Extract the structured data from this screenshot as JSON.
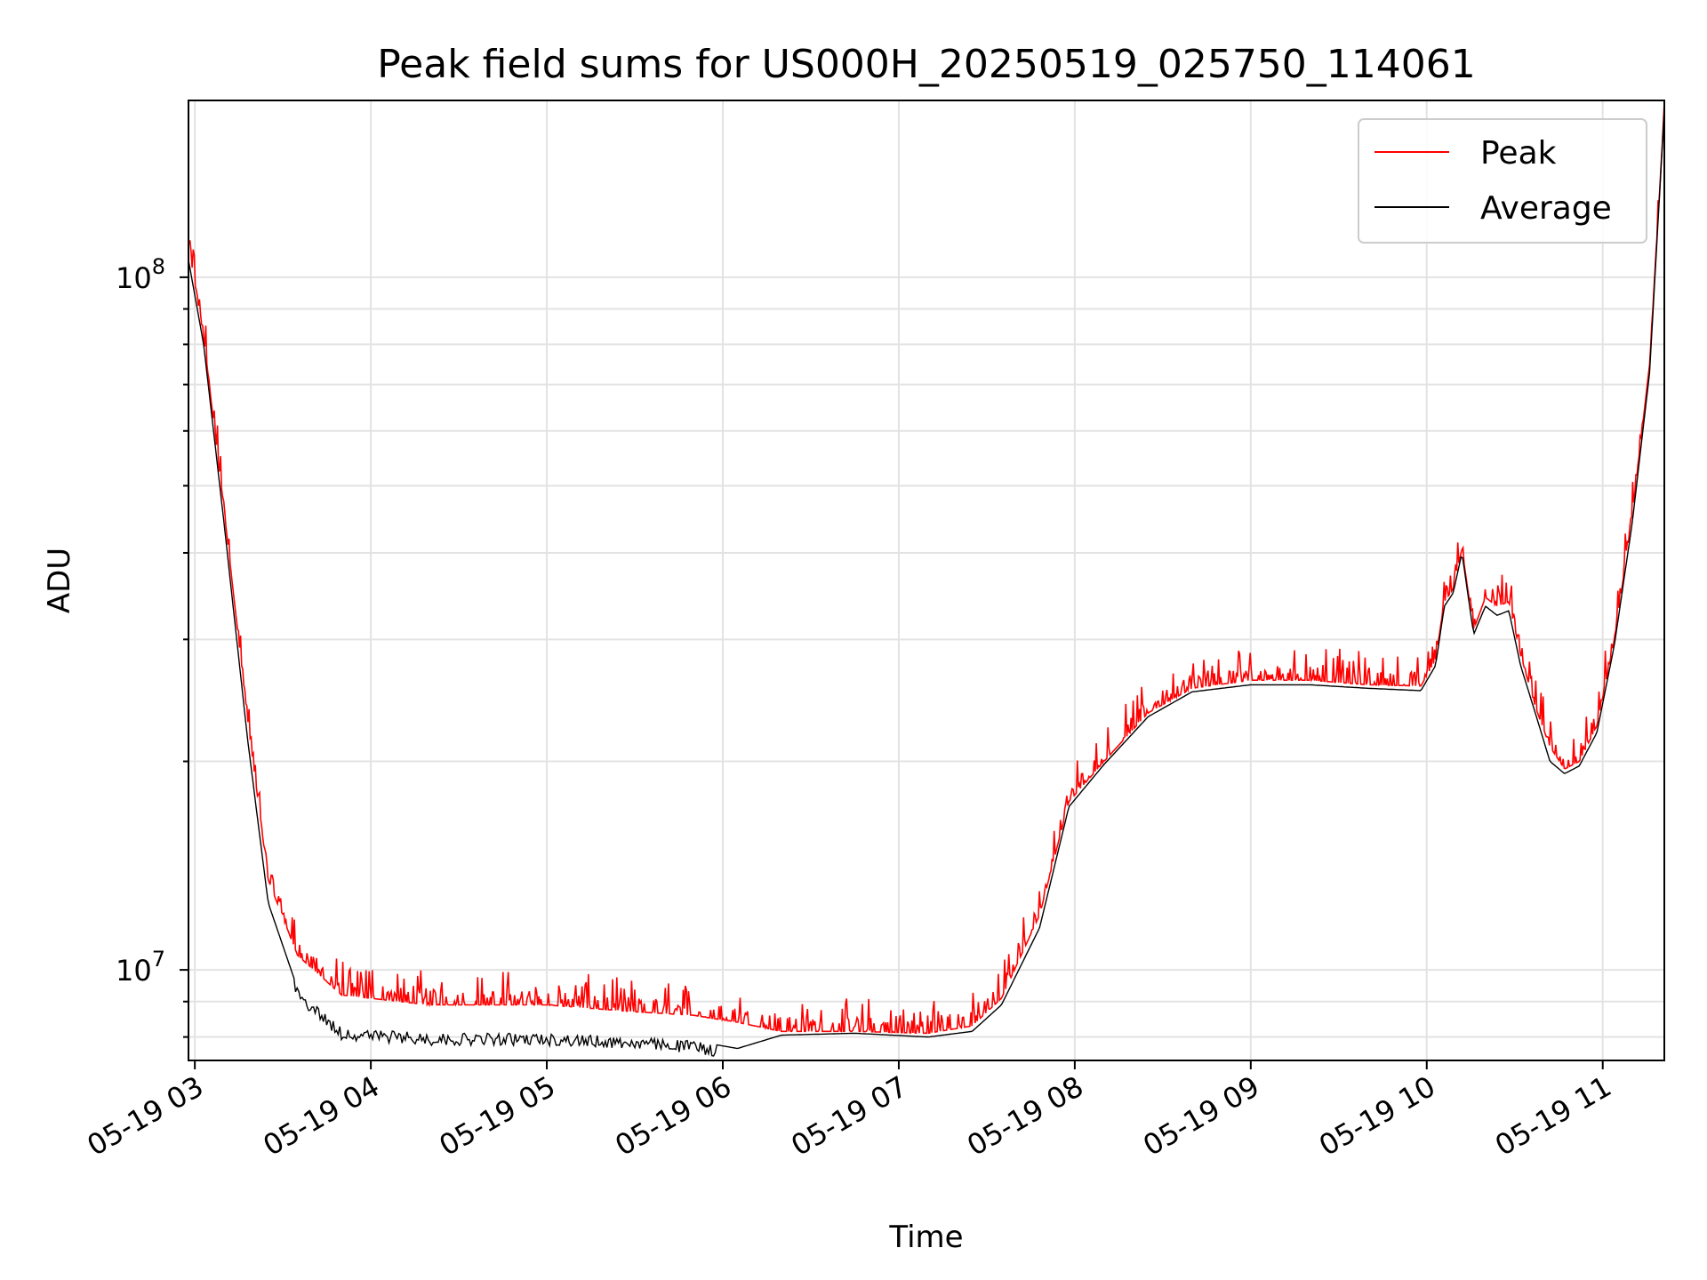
{
  "chart_data": {
    "type": "line",
    "title": "Peak field sums for US000H_20250519_025750_114061",
    "xlabel": "Time",
    "ylabel": "ADU",
    "y_scale": "log",
    "ylim": [
      7400000,
      180000000
    ],
    "xlim": [
      "2025-05-19 02:57:50",
      "2025-05-19 11:21:00"
    ],
    "x_ticks": [
      "2025-05-19 03:00",
      "2025-05-19 04:00",
      "2025-05-19 05:00",
      "2025-05-19 06:00",
      "2025-05-19 07:00",
      "2025-05-19 08:00",
      "2025-05-19 09:00",
      "2025-05-19 10:00",
      "2025-05-19 11:00"
    ],
    "x_tick_labels": [
      "05-19 03",
      "05-19 04",
      "05-19 05",
      "05-19 06",
      "05-19 07",
      "05-19 08",
      "05-19 09",
      "05-19 10",
      "05-19 11"
    ],
    "x_tick_rotation": 30,
    "y_tick_labels": [
      {
        "value": 10000000,
        "base": "10",
        "exp": "7"
      },
      {
        "value": 100000000,
        "base": "10",
        "exp": "8"
      }
    ],
    "grid": true,
    "legend": "top-right",
    "series": [
      {
        "name": "Peak",
        "color": "#ff0000",
        "style": "noisy-peaks",
        "x": [
          "2025-05-19 02:58",
          "2025-05-19 03:03",
          "2025-05-19 03:10",
          "2025-05-19 03:18",
          "2025-05-19 03:25",
          "2025-05-19 03:35",
          "2025-05-19 03:50",
          "2025-05-19 04:20",
          "2025-05-19 05:00",
          "2025-05-19 05:30",
          "2025-05-19 05:50",
          "2025-05-19 06:05",
          "2025-05-19 06:20",
          "2025-05-19 06:45",
          "2025-05-19 07:10",
          "2025-05-19 07:25",
          "2025-05-19 07:35",
          "2025-05-19 07:48",
          "2025-05-19 07:58",
          "2025-05-19 08:10",
          "2025-05-19 08:25",
          "2025-05-19 08:40",
          "2025-05-19 09:00",
          "2025-05-19 09:20",
          "2025-05-19 09:40",
          "2025-05-19 09:58",
          "2025-05-19 10:03",
          "2025-05-19 10:06",
          "2025-05-19 10:09",
          "2025-05-19 10:12",
          "2025-05-19 10:16",
          "2025-05-19 10:20",
          "2025-05-19 10:24",
          "2025-05-19 10:28",
          "2025-05-19 10:32",
          "2025-05-19 10:37",
          "2025-05-19 10:42",
          "2025-05-19 10:47",
          "2025-05-19 10:52",
          "2025-05-19 10:58",
          "2025-05-19 11:04",
          "2025-05-19 11:10",
          "2025-05-19 11:16",
          "2025-05-19 11:21"
        ],
        "values": [
          110000000,
          82000000,
          46000000,
          23000000,
          13500000,
          10500000,
          9200000,
          8900000,
          8900000,
          8700000,
          8600000,
          8400000,
          8150000,
          8150000,
          8100000,
          8300000,
          9100000,
          12000000,
          17500000,
          20000000,
          23500000,
          25500000,
          26200000,
          26200000,
          25800000,
          25700000,
          28000000,
          34000000,
          35500000,
          40500000,
          31000000,
          34500000,
          33500000,
          34000000,
          28500000,
          24000000,
          21000000,
          19500000,
          20000000,
          22500000,
          30000000,
          45000000,
          75000000,
          175000000
        ]
      },
      {
        "name": "Average",
        "color": "#000000",
        "style": "smooth",
        "x": [
          "2025-05-19 02:58",
          "2025-05-19 03:03",
          "2025-05-19 03:10",
          "2025-05-19 03:18",
          "2025-05-19 03:25",
          "2025-05-19 03:35",
          "2025-05-19 03:50",
          "2025-05-19 04:20",
          "2025-05-19 05:00",
          "2025-05-19 05:30",
          "2025-05-19 05:50",
          "2025-05-19 06:05",
          "2025-05-19 06:20",
          "2025-05-19 06:45",
          "2025-05-19 07:10",
          "2025-05-19 07:25",
          "2025-05-19 07:35",
          "2025-05-19 07:48",
          "2025-05-19 07:58",
          "2025-05-19 08:10",
          "2025-05-19 08:25",
          "2025-05-19 08:40",
          "2025-05-19 09:00",
          "2025-05-19 09:20",
          "2025-05-19 09:40",
          "2025-05-19 09:58",
          "2025-05-19 10:03",
          "2025-05-19 10:06",
          "2025-05-19 10:09",
          "2025-05-19 10:12",
          "2025-05-19 10:16",
          "2025-05-19 10:20",
          "2025-05-19 10:24",
          "2025-05-19 10:28",
          "2025-05-19 10:32",
          "2025-05-19 10:37",
          "2025-05-19 10:42",
          "2025-05-19 10:47",
          "2025-05-19 10:52",
          "2025-05-19 10:58",
          "2025-05-19 11:04",
          "2025-05-19 11:10",
          "2025-05-19 11:16",
          "2025-05-19 11:21"
        ],
        "values": [
          105000000,
          80000000,
          44000000,
          21500000,
          12500000,
          9400000,
          8250000,
          8100000,
          8100000,
          8000000,
          7900000,
          7700000,
          8050000,
          8100000,
          8000000,
          8150000,
          8900000,
          11500000,
          17200000,
          19800000,
          23200000,
          25200000,
          25800000,
          25800000,
          25500000,
          25300000,
          27500000,
          33500000,
          35000000,
          40000000,
          30500000,
          33500000,
          32500000,
          33000000,
          27500000,
          23500000,
          20000000,
          19200000,
          19700000,
          22000000,
          29500000,
          44000000,
          73000000,
          175000000
        ]
      }
    ]
  }
}
